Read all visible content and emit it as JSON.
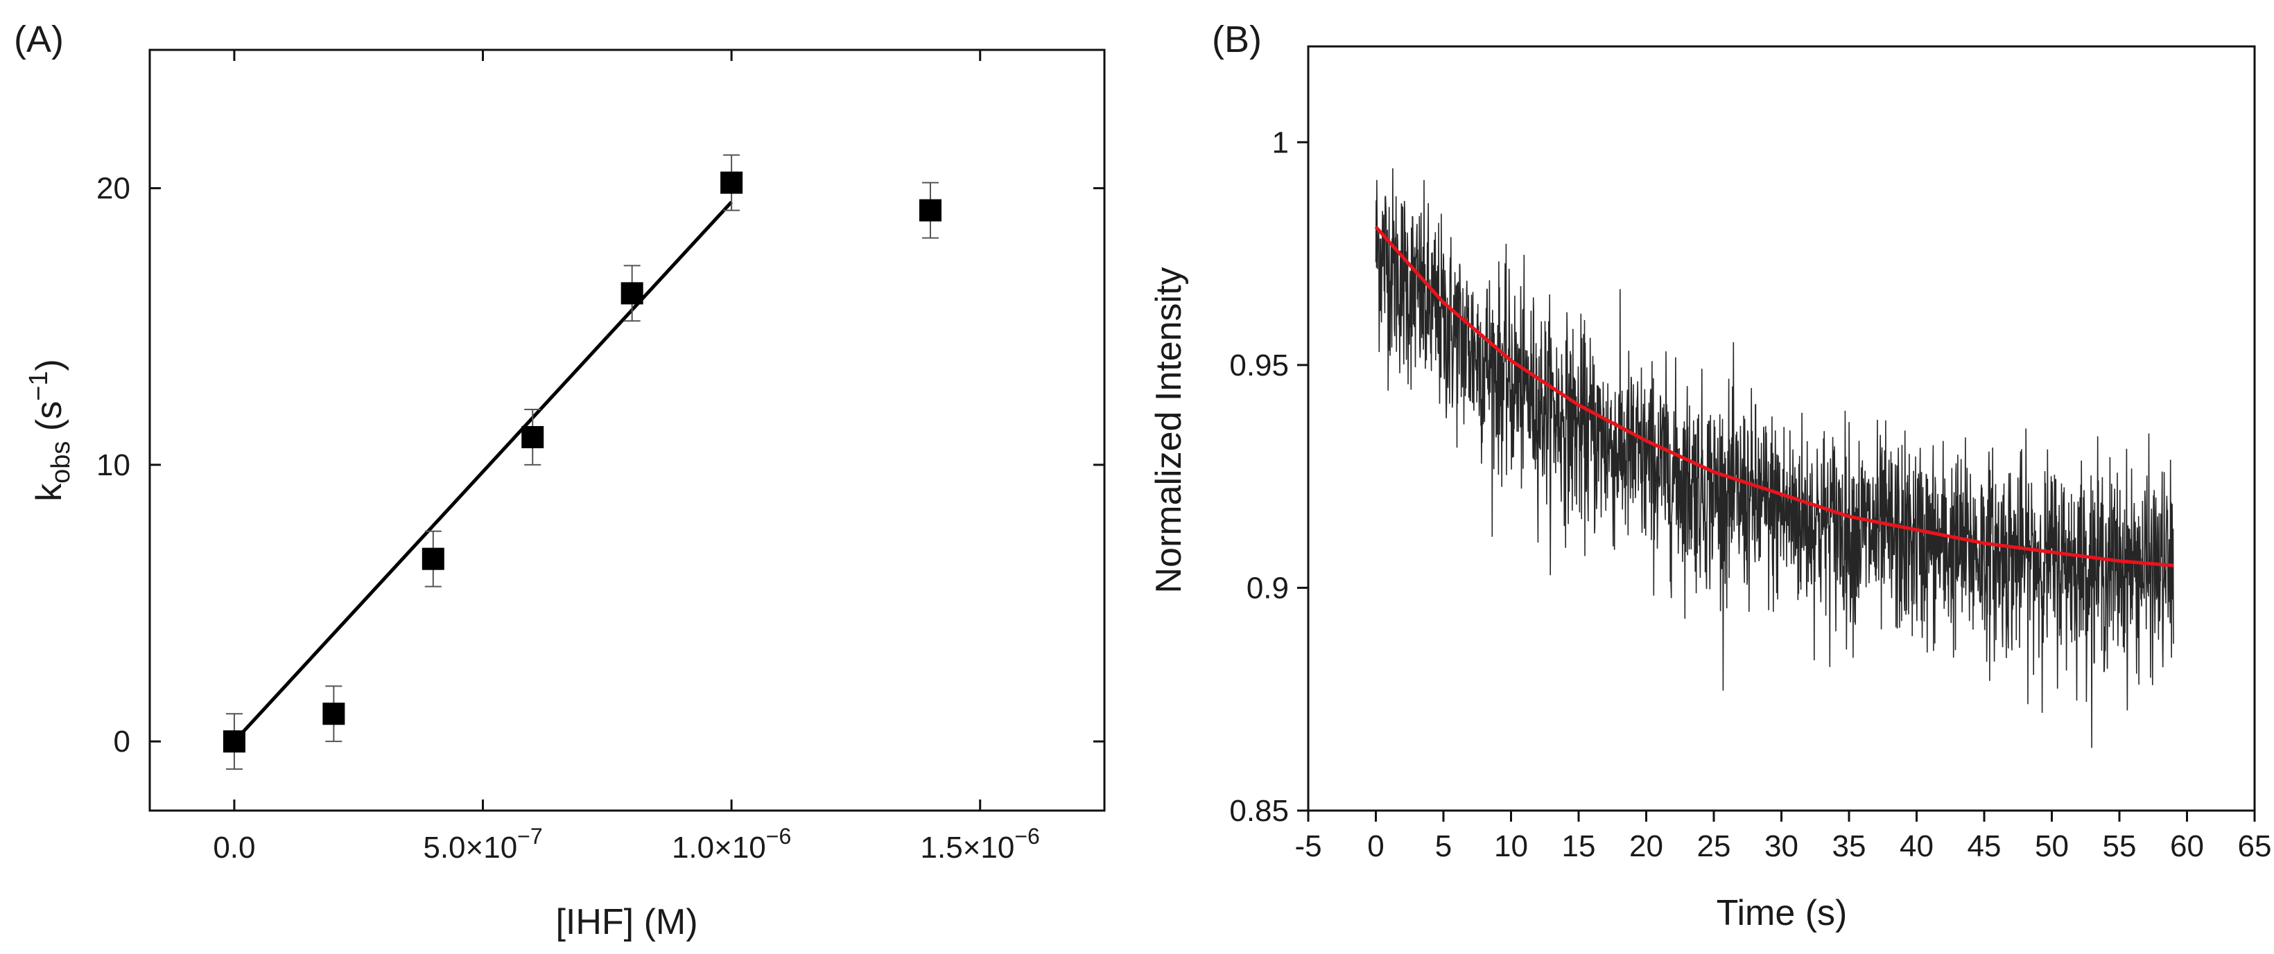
{
  "chart_data": [
    {
      "panel": "(A)",
      "type": "scatter",
      "xlabel": "[IHF] (M)",
      "ylabel_main": "k",
      "ylabel_sub": "obs",
      "ylabel_unit_open": " (s",
      "ylabel_unit_sup": "−1",
      "ylabel_unit_close": ")",
      "xlim": [
        -1.7e-07,
        1.75e-06
      ],
      "ylim": [
        -2.5,
        25
      ],
      "xticks": [
        {
          "value": 0,
          "label": "0.0",
          "exp": ""
        },
        {
          "value": 5e-07,
          "label": "5.0×10",
          "exp": "−7"
        },
        {
          "value": 1e-06,
          "label": "1.0×10",
          "exp": "−6"
        },
        {
          "value": 1.5e-06,
          "label": "1.5×10",
          "exp": "−6"
        }
      ],
      "yticks": [
        {
          "value": 0,
          "label": "0"
        },
        {
          "value": 10,
          "label": "10"
        },
        {
          "value": 20,
          "label": "20"
        }
      ],
      "points": [
        {
          "x": 0,
          "y": 0.0,
          "err": 1.0
        },
        {
          "x": 2e-07,
          "y": 1.0,
          "err": 1.0
        },
        {
          "x": 4e-07,
          "y": 6.6,
          "err": 1.0
        },
        {
          "x": 6e-07,
          "y": 11.0,
          "err": 1.0
        },
        {
          "x": 8e-07,
          "y": 16.2,
          "err": 1.0
        },
        {
          "x": 1e-06,
          "y": 20.2,
          "err": 1.0
        },
        {
          "x": 1.4e-06,
          "y": 19.2,
          "err": 1.0
        }
      ],
      "fit_line": {
        "x": [
          0,
          1e-06
        ],
        "y": [
          0.0,
          19.5
        ]
      },
      "colors": {
        "points": "#000000",
        "fit": "#000000",
        "errorbar": "#555555"
      }
    },
    {
      "panel": "(B)",
      "type": "line",
      "xlabel": "Time (s)",
      "ylabel": "Normalized Intensity",
      "xlim": [
        -5,
        65
      ],
      "ylim": [
        0.85,
        1.0215
      ],
      "xticks": [
        -5,
        0,
        5,
        10,
        15,
        20,
        25,
        30,
        35,
        40,
        45,
        50,
        55,
        60,
        65
      ],
      "yticks": [
        {
          "value": 0.85,
          "label": "0.85"
        },
        {
          "value": 0.9,
          "label": "0.9"
        },
        {
          "value": 0.95,
          "label": "0.95"
        },
        {
          "value": 1.0,
          "label": "1"
        }
      ],
      "data_trace": {
        "t_start": 0,
        "t_end": 59,
        "amplitude": 0.0765,
        "tau": 20,
        "offset": 0.9,
        "noise_sd": 0.011
      },
      "fit_curve": {
        "x": [
          0,
          5,
          10,
          15,
          20,
          25,
          30,
          35,
          40,
          45,
          50,
          55,
          59
        ],
        "y": [
          0.981,
          0.964,
          0.951,
          0.941,
          0.933,
          0.926,
          0.921,
          0.916,
          0.913,
          0.91,
          0.908,
          0.906,
          0.905
        ]
      },
      "colors": {
        "data": "#000000",
        "fit": "#e8141c"
      }
    }
  ]
}
